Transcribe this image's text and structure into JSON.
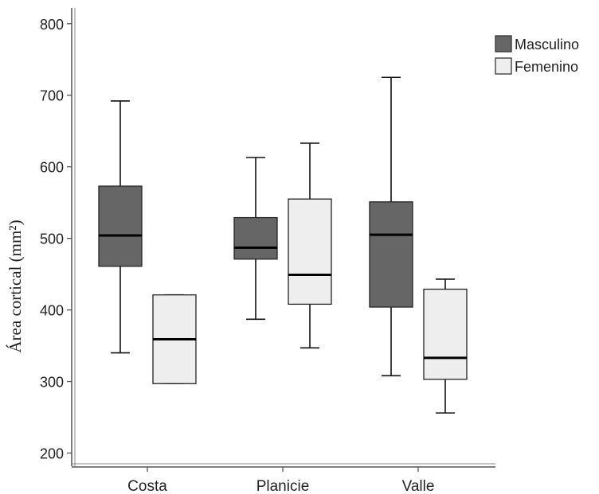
{
  "chart_data": {
    "type": "boxplot",
    "title": "",
    "xlabel": "",
    "ylabel": "Área cortical (mm²)",
    "ylim": [
      185,
      822
    ],
    "yticks": [
      200,
      300,
      400,
      500,
      600,
      700,
      800
    ],
    "categories": [
      "Costa",
      "Planicie",
      "Valle"
    ],
    "legend_position": "top-right",
    "series": [
      {
        "name": "Masculino",
        "color": "#666666",
        "boxes": [
          {
            "whisker_low": 340,
            "q1": 461,
            "median": 504,
            "q3": 573,
            "whisker_high": 692
          },
          {
            "whisker_low": 387,
            "q1": 471,
            "median": 487,
            "q3": 529,
            "whisker_high": 613
          },
          {
            "whisker_low": 308,
            "q1": 404,
            "median": 505,
            "q3": 551,
            "whisker_high": 725
          }
        ]
      },
      {
        "name": "Femenino",
        "color": "#eeeeee",
        "boxes": [
          {
            "whisker_low": 297,
            "q1": 297,
            "median": 359,
            "q3": 421,
            "whisker_high": 421
          },
          {
            "whisker_low": 347,
            "q1": 408,
            "median": 449,
            "q3": 555,
            "whisker_high": 633
          },
          {
            "whisker_low": 256,
            "q1": 303,
            "median": 333,
            "q3": 429,
            "whisker_high": 443
          }
        ]
      }
    ]
  }
}
